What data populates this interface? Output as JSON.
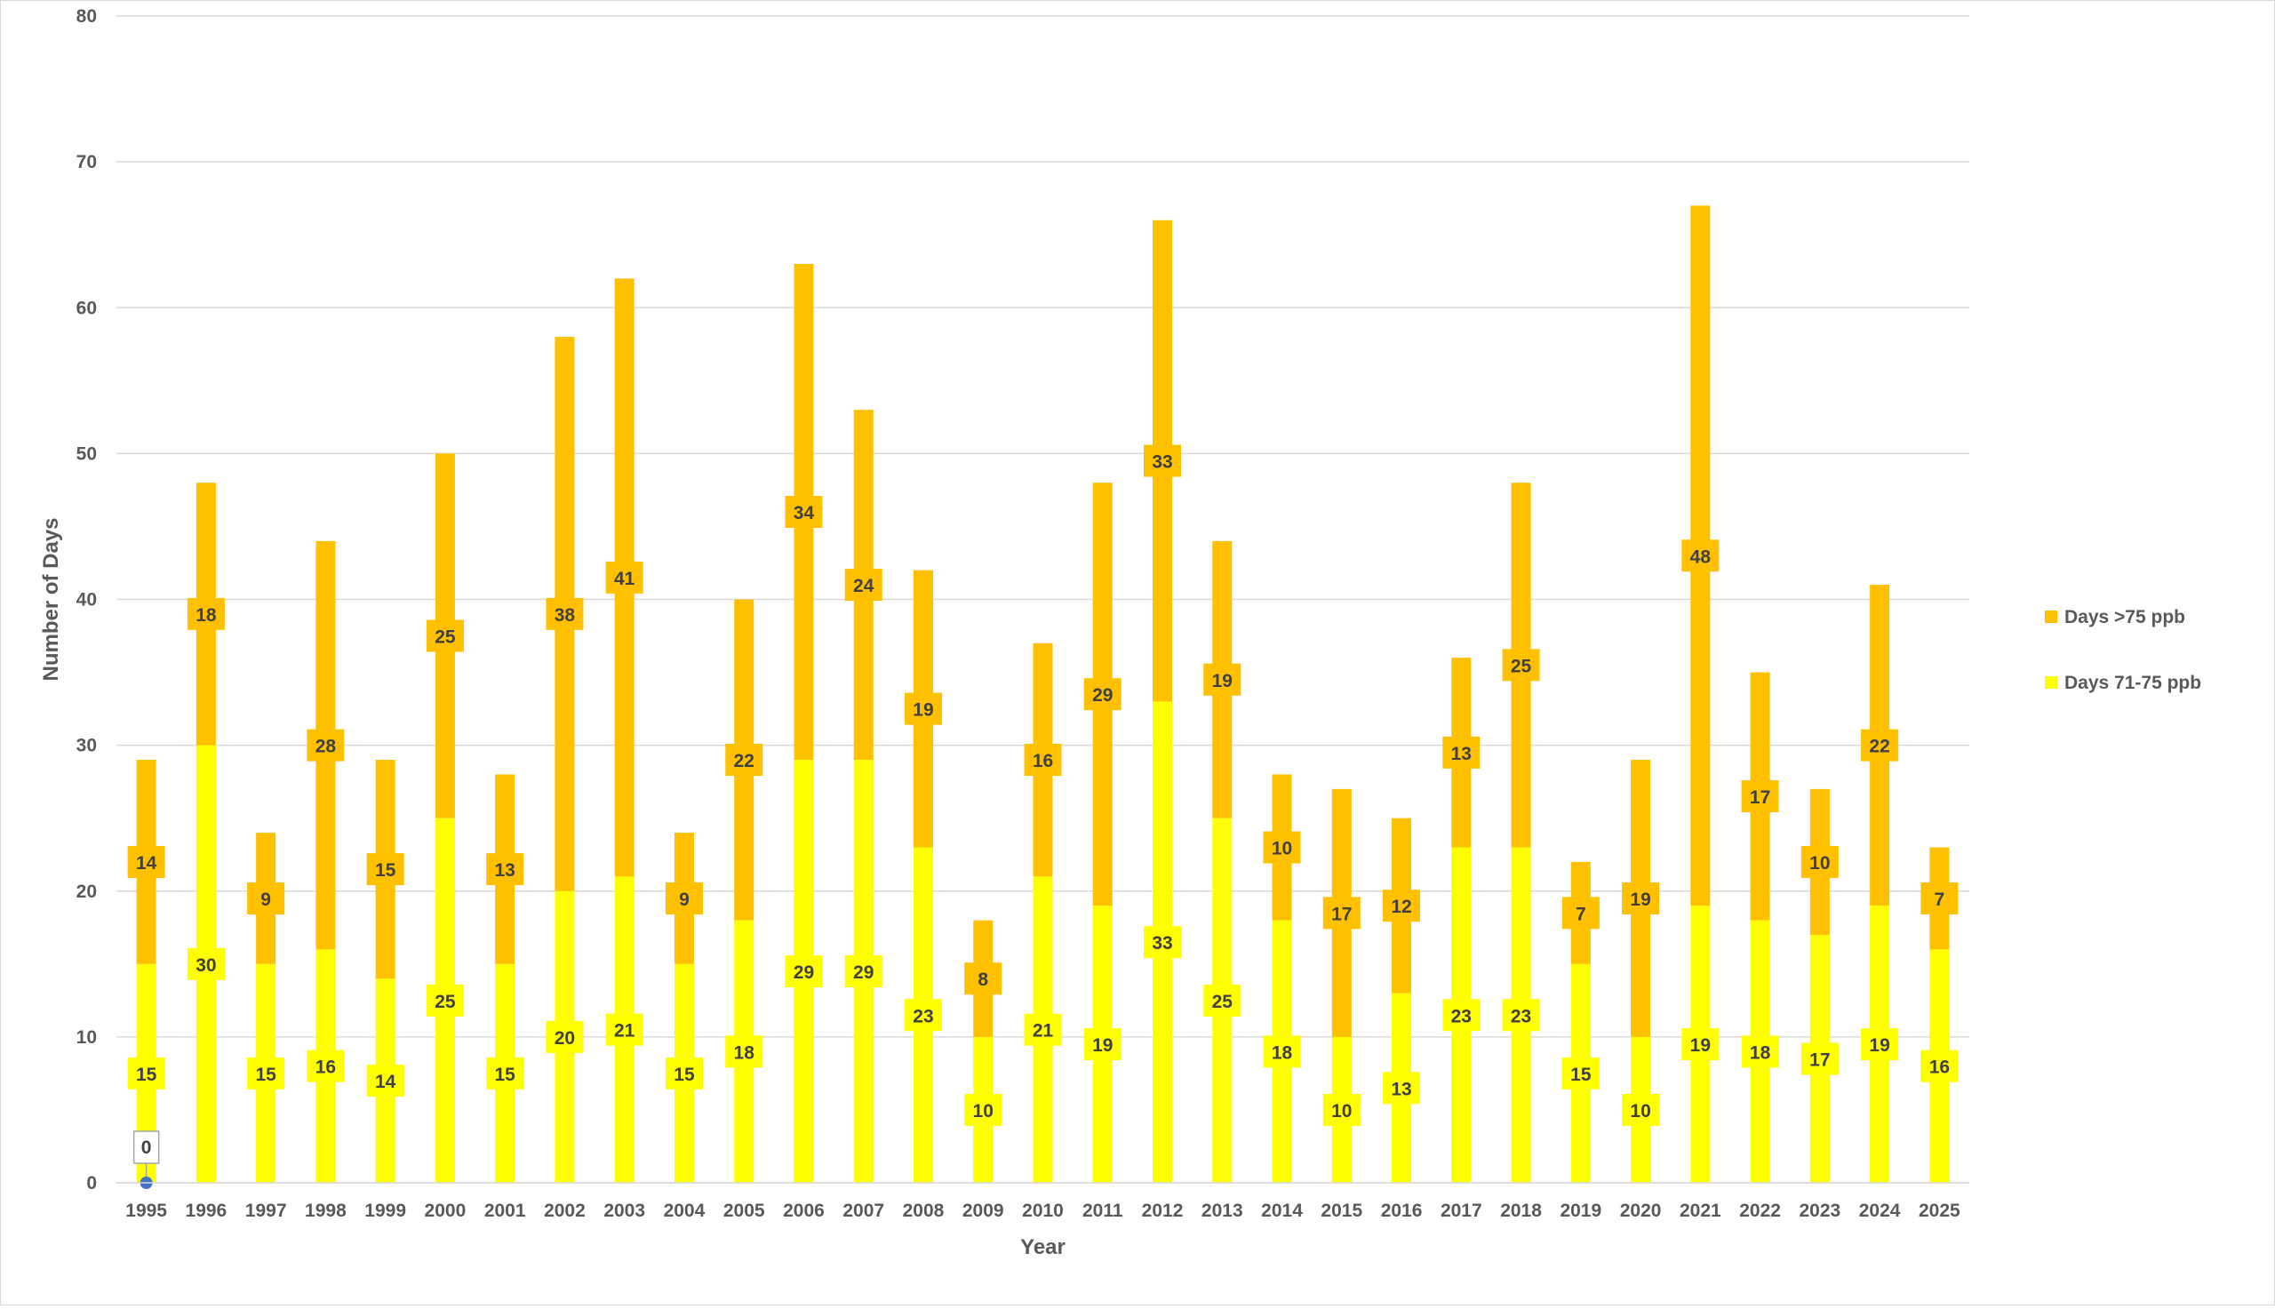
{
  "chart_data": {
    "type": "bar",
    "stacked": true,
    "xlabel": "Year",
    "ylabel": "Number of Days",
    "ylim": [
      0,
      80
    ],
    "yticks": [
      0,
      10,
      20,
      30,
      40,
      50,
      60,
      70,
      80
    ],
    "grid": true,
    "legend_position": "right",
    "categories": [
      "1995",
      "1996",
      "1997",
      "1998",
      "1999",
      "2000",
      "2001",
      "2002",
      "2003",
      "2004",
      "2005",
      "2006",
      "2007",
      "2008",
      "2009",
      "2010",
      "2011",
      "2012",
      "2013",
      "2014",
      "2015",
      "2016",
      "2017",
      "2018",
      "2019",
      "2020",
      "2021",
      "2022",
      "2023",
      "2024",
      "2025"
    ],
    "series": [
      {
        "name": "Days 71-75 ppb",
        "color": "#ffff00",
        "values": [
          15,
          30,
          15,
          16,
          14,
          25,
          15,
          20,
          21,
          15,
          18,
          29,
          29,
          23,
          10,
          21,
          19,
          33,
          25,
          18,
          10,
          13,
          23,
          23,
          15,
          10,
          19,
          18,
          17,
          19,
          16
        ]
      },
      {
        "name": "Days >75 ppb",
        "color": "#ffc000",
        "values": [
          14,
          18,
          9,
          28,
          15,
          25,
          13,
          38,
          41,
          9,
          22,
          34,
          24,
          19,
          8,
          16,
          29,
          33,
          19,
          10,
          17,
          12,
          13,
          25,
          7,
          19,
          48,
          17,
          10,
          22,
          7
        ]
      }
    ],
    "annotations": [
      {
        "category": "1995",
        "value": 0,
        "label": "0",
        "marker_color": "#4472c4"
      }
    ]
  }
}
